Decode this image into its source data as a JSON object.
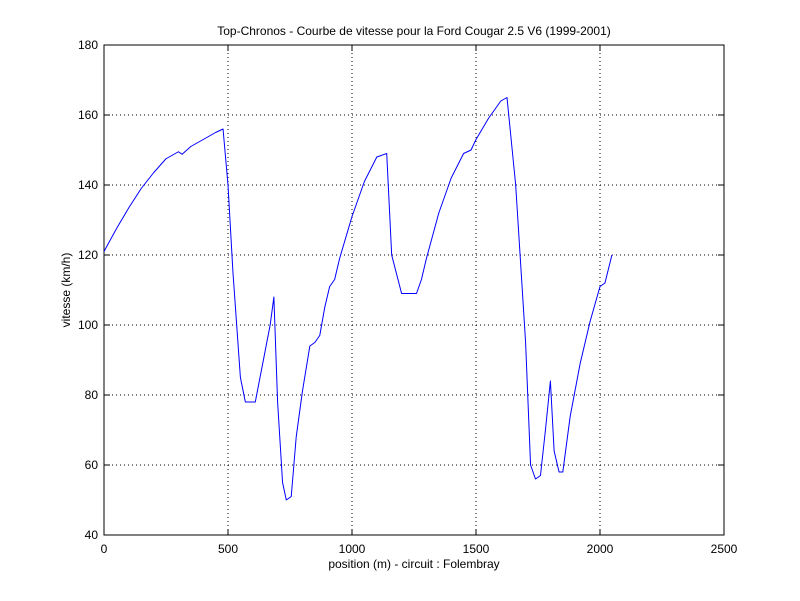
{
  "chart_data": {
    "type": "line",
    "title": "Top-Chronos - Courbe de vitesse pour la Ford Cougar 2.5 V6 (1999-2001)",
    "xlabel": "position (m) - circuit : Folembray",
    "ylabel": "vitesse (km/h)",
    "xlim": [
      0,
      2500
    ],
    "ylim": [
      40,
      180
    ],
    "xticks": [
      0,
      500,
      1000,
      1500,
      2000,
      2500
    ],
    "yticks": [
      40,
      60,
      80,
      100,
      120,
      140,
      160,
      180
    ],
    "grid": true,
    "line_color": "#0000ff",
    "series": [
      {
        "x": [
          0,
          50,
          100,
          150,
          200,
          250,
          300,
          315,
          350,
          400,
          450,
          480,
          500,
          520,
          550,
          570,
          590,
          610,
          640,
          670,
          685,
          700,
          720,
          735,
          755,
          775,
          800,
          830,
          850,
          870,
          890,
          910,
          930,
          950,
          1000,
          1050,
          1100,
          1140,
          1160,
          1200,
          1220,
          1260,
          1280,
          1300,
          1350,
          1400,
          1450,
          1480,
          1500,
          1550,
          1600,
          1625,
          1660,
          1700,
          1720,
          1740,
          1760,
          1780,
          1800,
          1815,
          1835,
          1850,
          1880,
          1920,
          1960,
          2000,
          2020,
          2048
        ],
        "y": [
          121,
          127.5,
          133.5,
          139,
          143.5,
          147.5,
          149.5,
          148.8,
          151,
          153,
          155,
          156,
          140,
          115,
          85,
          78,
          78,
          78,
          89,
          100,
          108,
          78,
          55,
          50,
          51,
          68,
          81,
          94,
          95,
          97,
          105,
          111,
          113,
          119,
          131,
          141,
          148,
          149,
          120,
          109,
          109,
          109,
          113,
          119,
          132,
          142,
          149,
          150,
          153,
          159,
          164,
          165,
          140,
          95,
          60,
          56,
          57,
          70,
          84,
          64,
          58,
          58,
          74,
          89,
          101,
          111,
          112,
          120
        ]
      }
    ]
  }
}
